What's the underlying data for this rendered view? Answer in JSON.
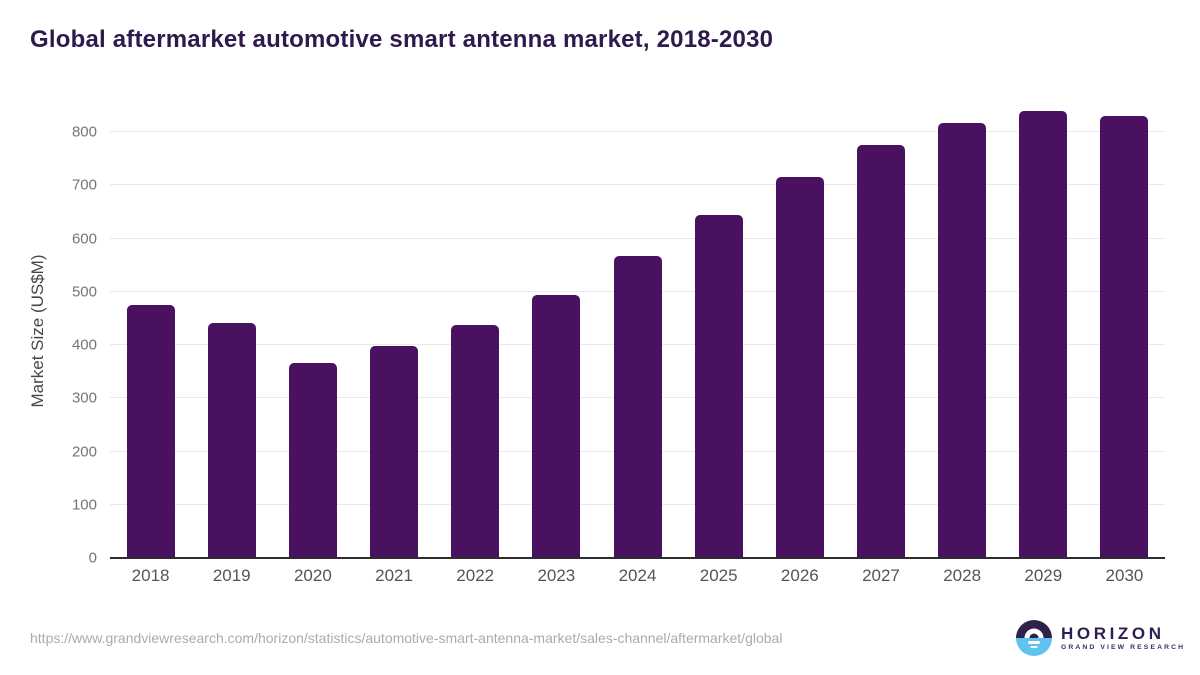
{
  "page": {
    "title": "Global aftermarket automotive smart antenna market, 2018-2030"
  },
  "chart_data": {
    "type": "bar",
    "title": "Global aftermarket automotive smart antenna market, 2018-2030",
    "categories": [
      "2018",
      "2019",
      "2020",
      "2021",
      "2022",
      "2023",
      "2024",
      "2025",
      "2026",
      "2027",
      "2028",
      "2029",
      "2030"
    ],
    "values": [
      475,
      441,
      367,
      398,
      438,
      495,
      568,
      645,
      716,
      776,
      818,
      840,
      831
    ],
    "xlabel": "",
    "ylabel": "Market Size (US$M)",
    "ylim": [
      0,
      851
    ],
    "yticks": [
      0,
      100,
      200,
      300,
      400,
      500,
      600,
      700,
      800
    ],
    "grid": "horizontal",
    "legend": "none",
    "bar_color": "#4a1161"
  },
  "footer": {
    "source_url": "https://www.grandviewresearch.com/horizon/statistics/automotive-smart-antenna-market/sales-channel/aftermarket/global",
    "logo": {
      "brand": "HORIZON",
      "tagline": "GRAND VIEW RESEARCH",
      "icon": "horizon-sunrise-icon"
    }
  },
  "colors": {
    "title_text": "#2e1a4d",
    "bar": "#4a1161",
    "axis_line": "#2d2d2d",
    "gridline": "#e9e9e9",
    "ytick_label": "#757575",
    "xtick_label": "#555555",
    "url_text": "#ababab",
    "logo_dark_purple": "#2f2149",
    "logo_light_blue": "#5ec3f0"
  }
}
